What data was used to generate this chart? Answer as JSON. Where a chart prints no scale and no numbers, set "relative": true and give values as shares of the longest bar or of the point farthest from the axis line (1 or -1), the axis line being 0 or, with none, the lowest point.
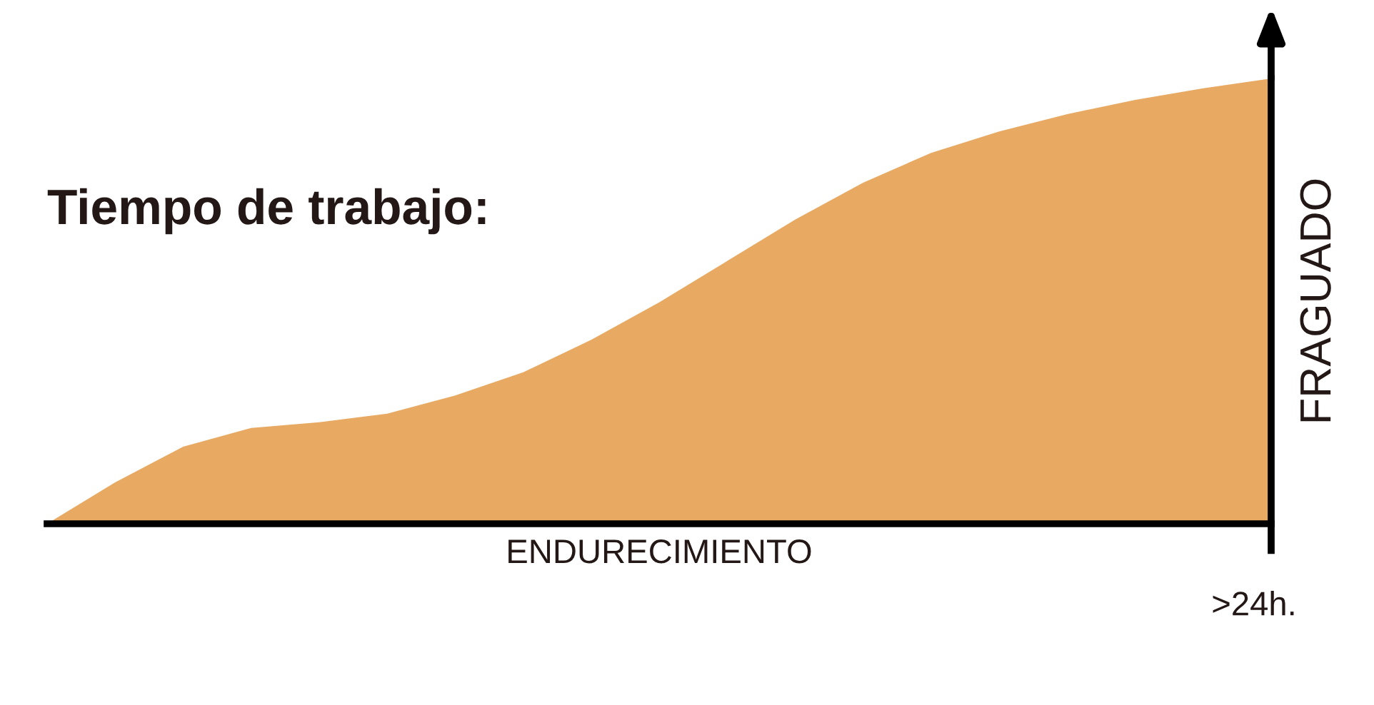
{
  "chart_data": {
    "type": "area",
    "relative": true,
    "title": "Tiempo de trabajo:",
    "xlabel": "ENDURECIMIENTO",
    "ylabel": "FRAGUADO",
    "annotations": [
      ">24h."
    ],
    "categories": [
      null,
      null,
      null,
      null,
      null,
      null,
      null,
      null,
      null,
      null,
      null,
      null,
      null,
      null,
      null,
      null,
      null,
      null,
      null
    ],
    "series": [
      {
        "color": "#e8aa63",
        "values": [
          0,
          0.093,
          0.173,
          0.215,
          0.228,
          0.247,
          0.288,
          0.34,
          0.413,
          0.497,
          0.59,
          0.683,
          0.766,
          0.833,
          0.881,
          0.92,
          0.952,
          0.978,
          1
        ]
      }
    ],
    "grid": false,
    "legend": false
  }
}
